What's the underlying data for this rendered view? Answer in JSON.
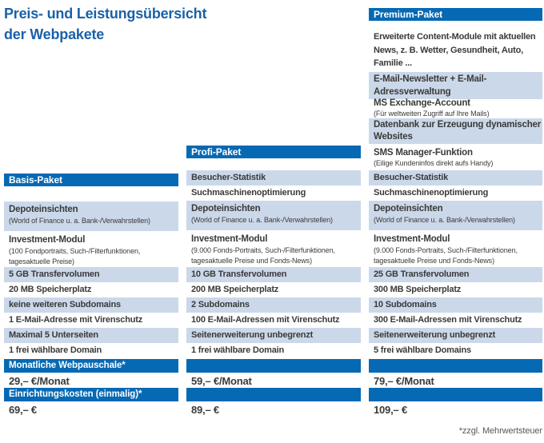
{
  "title": {
    "line1": "Preis- und Leistungsübersicht",
    "line2": "der Webpakete"
  },
  "footnote": "*zzgl. Mehrwertsteuer",
  "colors": {
    "header_blue": "#0669b3",
    "row_light_blue": "#cbd8ea",
    "title_blue": "#1b61a8",
    "body_text": "#3a3a38",
    "footnote_gray": "#575756"
  },
  "basis": {
    "header": "Basis-Paket",
    "rows": [
      {
        "title": "Depoteinsichten",
        "sub": "(World of Finance u. a. Bank-/Verwahrstellen)"
      },
      {
        "title": "Investment-Modul",
        "sub": "(100 Fondportraits, Such-/Filterfunktionen, tagesaktuelle Preise)"
      },
      {
        "title": "5 GB Transfervolumen"
      },
      {
        "title": "20 MB Speicherplatz"
      },
      {
        "title": "keine weiteren Subdomains"
      },
      {
        "title": "1 E-Mail-Adresse mit Virenschutz"
      },
      {
        "title": "Maximal 5 Unterseiten"
      },
      {
        "title": "1 frei wählbare Domain"
      }
    ],
    "pricing": {
      "monthly_label": "Monatliche Webpauschale*",
      "monthly_value": "29,– €/Monat",
      "setup_label": "Einrichtungskosten (einmalig)*",
      "setup_value": "69,– €"
    }
  },
  "profi": {
    "header": "Profi-Paket",
    "rows": [
      {
        "title": "Besucher-Statistik"
      },
      {
        "title": "Suchmaschinenoptimierung"
      },
      {
        "title": "Depoteinsichten",
        "sub": "(World of Finance u. a. Bank-/Verwahrstellen)"
      },
      {
        "title": "Investment-Modul",
        "sub": "(9.000 Fonds-Portraits, Such-/Filterfunktionen, tagesaktuelle Preise und Fonds-News)"
      },
      {
        "title": "10 GB Transfervolumen"
      },
      {
        "title": "200 MB Speicherplatz"
      },
      {
        "title": "2 Subdomains"
      },
      {
        "title": "100 E-Mail-Adressen mit Virenschutz"
      },
      {
        "title": "Seitenerweiterung unbegrenzt"
      },
      {
        "title": "1 frei wählbare Domain"
      }
    ],
    "pricing": {
      "monthly_value": "59,– €/Monat",
      "setup_value": "89,– €"
    }
  },
  "premium": {
    "header": "Premium-Paket",
    "top_rows": [
      {
        "title": "Erweiterte Content-Module mit aktuellen News, z. B. Wetter, Gesundheit, Auto, Familie ..."
      },
      {
        "title": "E-Mail-Newsletter + E-Mail-Adressverwaltung"
      },
      {
        "title": "MS Exchange-Account",
        "sub": "(Für weltweiten Zugriff auf Ihre Mails)"
      },
      {
        "title": "Datenbank zur Erzeugung dynamischer Websites"
      },
      {
        "title": "SMS Manager-Funktion",
        "sub": "(Eilige Kundeninfos direkt aufs Handy)"
      }
    ],
    "rows": [
      {
        "title": "Besucher-Statistik"
      },
      {
        "title": "Suchmaschinenoptimierung"
      },
      {
        "title": "Depoteinsichten",
        "sub": "(World of Finance u. a. Bank-/Verwahrstellen)"
      },
      {
        "title": "Investment-Modul",
        "sub": "(9.000 Fonds-Portraits, Such-/Filterfunktionen, tagesaktuelle Preise und Fonds-News)"
      },
      {
        "title": "25 GB Transfervolumen"
      },
      {
        "title": "300 MB Speicherplatz"
      },
      {
        "title": "10 Subdomains"
      },
      {
        "title": "300 E-Mail-Adressen mit Virenschutz"
      },
      {
        "title": "Seitenerweiterung unbegrenzt"
      },
      {
        "title": "5 frei wählbare Domains"
      }
    ],
    "pricing": {
      "monthly_value": "79,– €/Monat",
      "setup_value": "109,– €"
    }
  }
}
